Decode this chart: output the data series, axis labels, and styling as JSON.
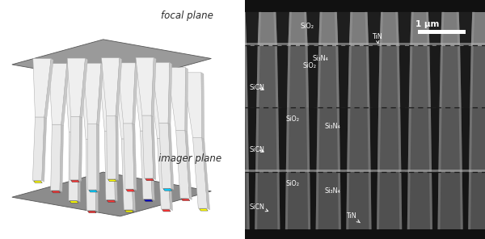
{
  "fig_width": 6.0,
  "fig_height": 2.96,
  "dpi": 100,
  "left_label_focal": "focal plane",
  "left_label_imager": "imager plane",
  "right_labels": {
    "SiO2_top": "SiO₂",
    "TiN_top": "TiN",
    "Si3N4_1": "Si₃N₄",
    "SiO2_1": "SiO₂",
    "SiCN_1": "SiCN",
    "SiO2_2": "SiO₂",
    "Si3N4_2": "Si₃N₄",
    "SiCN_2": "SiCN",
    "SiO2_3": "SiO₂",
    "Si3N4_3": "Si₃N₄",
    "SiCN_3": "SiCN",
    "TiN_bot": "TiN",
    "scale_bar": "1 μm"
  },
  "pixel_colors_row": [
    [
      "#ffff00",
      "#ff3333",
      "#ffff00",
      "#ff3333"
    ],
    [
      "#ff3333",
      "#00ccff",
      "#ff3333",
      "#00ccff"
    ],
    [
      "#ffff00",
      "#ff3333",
      "#0000cc",
      "#ff3333"
    ],
    [
      "#ff3333",
      "#ffff00",
      "#ff3333",
      "#ffff00"
    ]
  ],
  "tem_bg": "#606060",
  "tem_top_strip": "#1c1c1c",
  "tem_bot_strip": "#1c1c1c",
  "tem_sio2_top_bg": "#7a7a7a",
  "tem_layer_bg_1": "#585858",
  "tem_layer_bg_2": "#525252",
  "tem_layer_bg_3": "#4c4c4c",
  "tem_col_dark": "#282828",
  "tem_col_edge_bright": "#b0b0b0",
  "tem_tin_line": "#c0c0c0",
  "tem_dash_color": "#1e1e1e",
  "ann_fontsize": 5.8,
  "ann_color": "white",
  "scale_bar_text_fs": 7.5
}
